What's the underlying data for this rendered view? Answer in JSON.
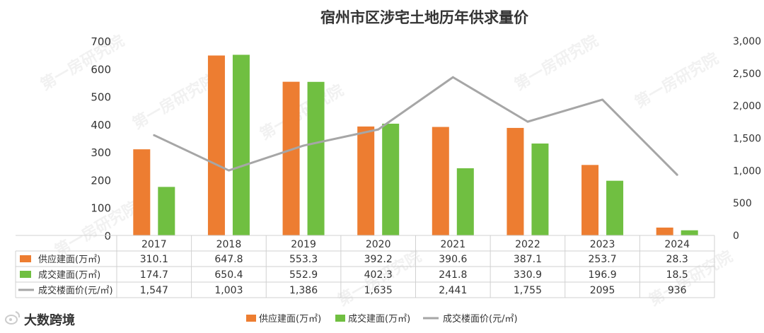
{
  "chart_data": {
    "type": "bar",
    "title": "宿州市区涉宅土地历年供求量价",
    "categories": [
      "2017",
      "2018",
      "2019",
      "2020",
      "2021",
      "2022",
      "2023",
      "2024"
    ],
    "series": [
      {
        "name": "供应建面(万㎡)",
        "type": "bar",
        "axis": "left",
        "color": "#ED7D31",
        "values": [
          310.1,
          647.8,
          553.3,
          392.2,
          390.6,
          387.1,
          253.7,
          28.3
        ],
        "labels": [
          "310.1",
          "647.8",
          "553.3",
          "392.2",
          "390.6",
          "387.1",
          "253.7",
          "28.3"
        ]
      },
      {
        "name": "成交建面(万㎡)",
        "type": "bar",
        "axis": "left",
        "color": "#70BF41",
        "values": [
          174.7,
          650.4,
          552.9,
          402.3,
          241.8,
          330.9,
          196.9,
          18.5
        ],
        "labels": [
          "174.7",
          "650.4",
          "552.9",
          "402.3",
          "241.8",
          "330.9",
          "196.9",
          "18.5"
        ]
      },
      {
        "name": "成交楼面价(元/㎡)",
        "type": "line",
        "axis": "right",
        "color": "#A6A6A6",
        "values": [
          1547,
          1003,
          1386,
          1635,
          2441,
          1755,
          2095,
          936
        ],
        "labels": [
          "1,547",
          "1,003",
          "1,386",
          "1,635",
          "2,441",
          "1,755",
          "2095",
          "936"
        ]
      }
    ],
    "y_left": {
      "min": 0,
      "max": 700,
      "ticks": [
        0,
        100,
        200,
        300,
        400,
        500,
        600,
        700
      ]
    },
    "y_right": {
      "min": 0,
      "max": 3000,
      "ticks": [
        "0",
        "500",
        "1,000",
        "1,500",
        "2,000",
        "2,500",
        "3,000"
      ],
      "tick_values": [
        0,
        500,
        1000,
        1500,
        2000,
        2500,
        3000
      ]
    },
    "legend_position": "bottom",
    "data_table": true
  },
  "watermark": {
    "text": "第一房研究院"
  },
  "brand": {
    "text": "大数跨境",
    "icon": "weibo-logo-icon"
  }
}
